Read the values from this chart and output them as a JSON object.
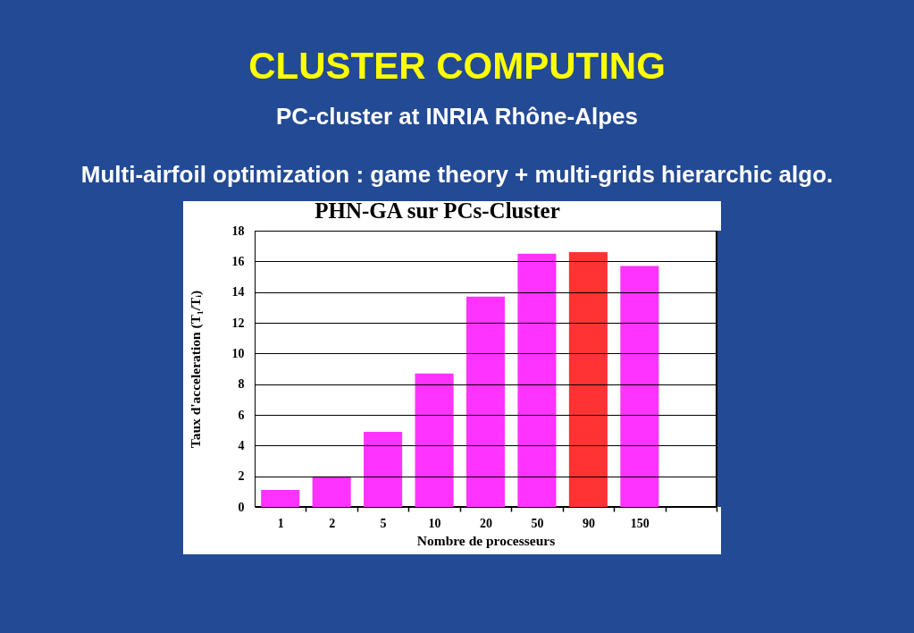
{
  "chart_data": {
    "type": "bar",
    "title": "PHN-GA sur PCs-Cluster",
    "annotations": [
      "CLUSTER COMPUTING",
      "PC-cluster at INRIA Rhône-Alpes",
      "Multi-airfoil optimization : game theory + multi-grids hierarchic algo."
    ],
    "xlabel": "Nombre de processeurs",
    "ylabel": "Taux d'acceleration (T₁/Tᵢ)",
    "categories": [
      "1",
      "2",
      "5",
      "10",
      "20",
      "50",
      "90",
      "150",
      null
    ],
    "values": [
      1.1,
      2.0,
      4.9,
      8.7,
      13.7,
      16.5,
      16.6,
      15.7,
      null
    ],
    "colors": [
      "#ff33ff",
      "#ff33ff",
      "#ff33ff",
      "#ff33ff",
      "#ff33ff",
      "#ff33ff",
      "#ff3333",
      "#ff33ff",
      null
    ],
    "ylim": [
      0,
      18
    ],
    "yticks": [
      0,
      2,
      4,
      6,
      8,
      10,
      12,
      14,
      16,
      18
    ],
    "grid": "y"
  }
}
